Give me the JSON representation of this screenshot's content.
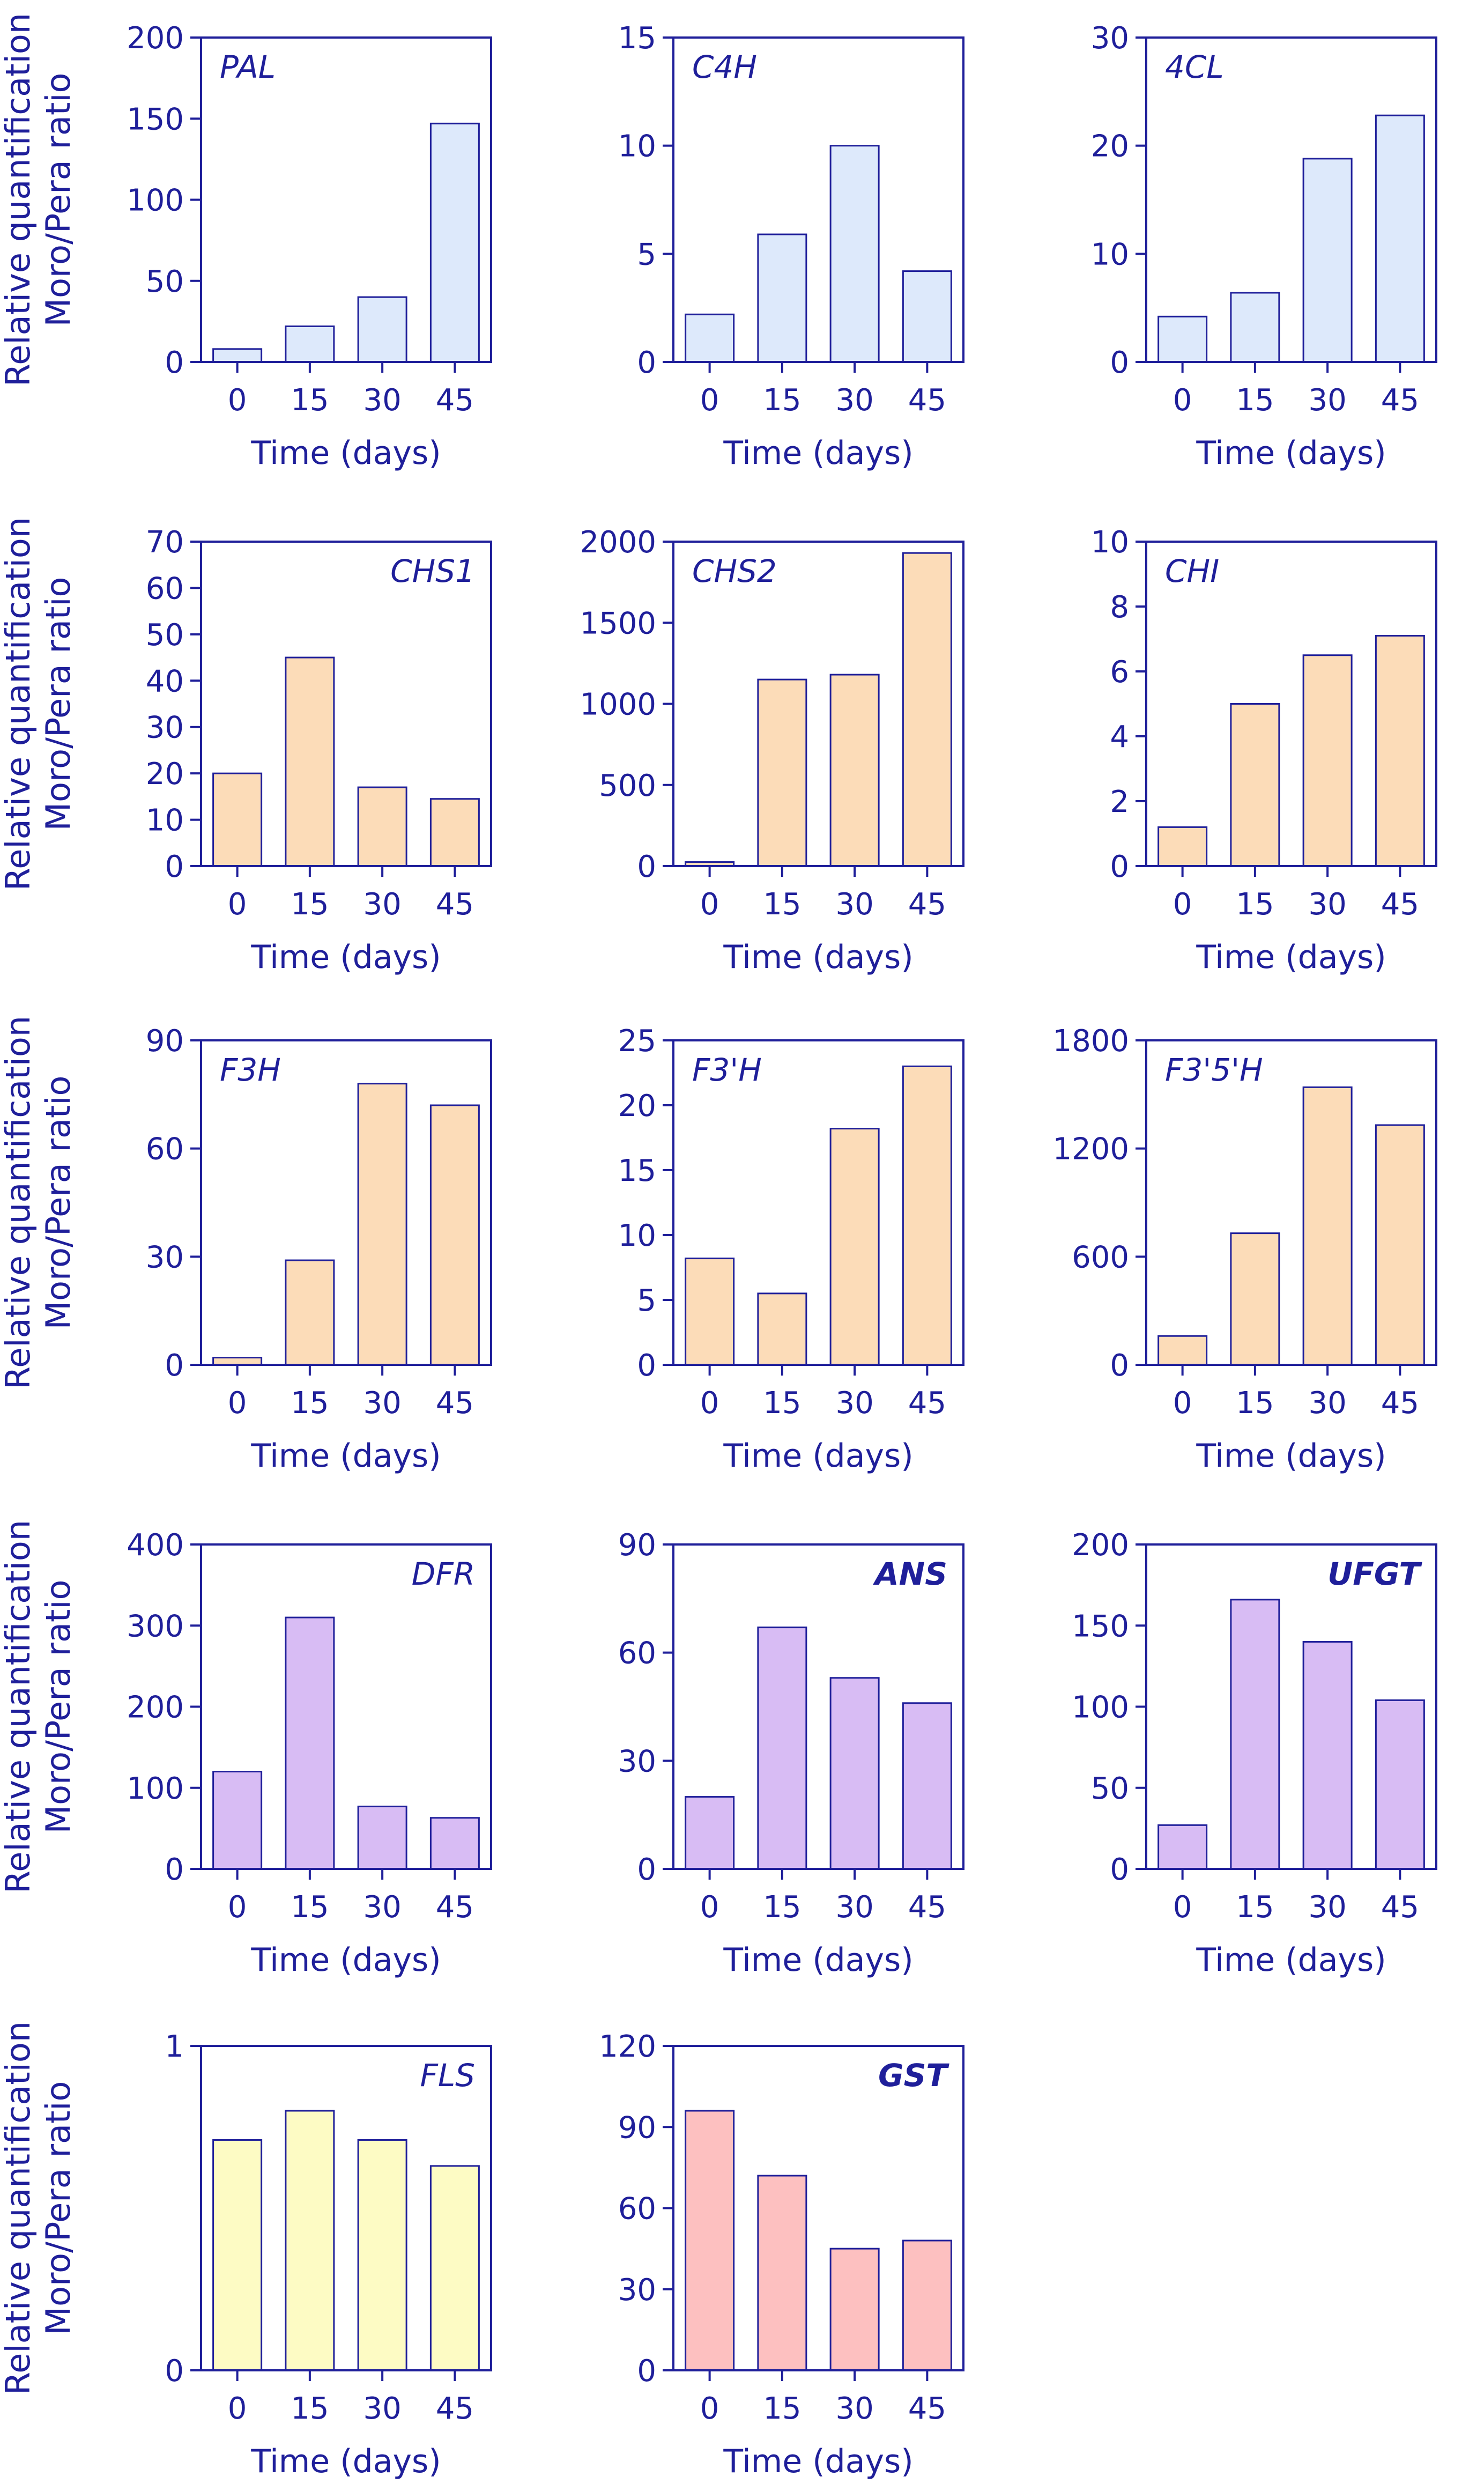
{
  "figure": {
    "ylabel_line1": "Relative quantification",
    "ylabel_line2": "Moro/Pera ratio",
    "colors": {
      "axis": "#1f1f9a",
      "blue": "#dde9fb",
      "orange": "#fcdcb8",
      "purple": "#d8bcf4",
      "yellow": "#fdfbc4",
      "pink": "#fdc0c0"
    }
  },
  "chart_data": [
    {
      "type": "bar",
      "title": "PAL",
      "title_pos": "left",
      "title_bold": false,
      "color": "blue",
      "categories": [
        "0",
        "15",
        "30",
        "45"
      ],
      "values": [
        8,
        22,
        40,
        147
      ],
      "ylim": [
        0,
        200
      ],
      "yticks": [
        "0",
        "50",
        "100",
        "150",
        "200"
      ],
      "ytick_values": [
        0,
        50,
        100,
        150,
        200
      ],
      "xlabel": "Time (days)",
      "ylabel": "Relative quantification Moro/Pera ratio"
    },
    {
      "type": "bar",
      "title": "C4H",
      "title_pos": "left",
      "title_bold": false,
      "color": "blue",
      "categories": [
        "0",
        "15",
        "30",
        "45"
      ],
      "values": [
        2.2,
        5.9,
        10,
        4.2
      ],
      "ylim": [
        0,
        15
      ],
      "yticks": [
        "0",
        "5",
        "10",
        "15"
      ],
      "ytick_values": [
        0,
        5,
        10,
        15
      ],
      "xlabel": "Time (days)",
      "ylabel": ""
    },
    {
      "type": "bar",
      "title": "4CL",
      "title_pos": "left",
      "title_bold": false,
      "color": "blue",
      "categories": [
        "0",
        "15",
        "30",
        "45"
      ],
      "values": [
        4.2,
        6.4,
        18.8,
        22.8
      ],
      "ylim": [
        0,
        30
      ],
      "yticks": [
        "0",
        "10",
        "20",
        "30"
      ],
      "ytick_values": [
        0,
        10,
        20,
        30
      ],
      "xlabel": "Time (days)",
      "ylabel": ""
    },
    {
      "type": "bar",
      "title": "CHS1",
      "title_pos": "right",
      "title_bold": false,
      "color": "orange",
      "categories": [
        "0",
        "15",
        "30",
        "45"
      ],
      "values": [
        20,
        45,
        17,
        14.5
      ],
      "ylim": [
        0,
        70
      ],
      "yticks": [
        "0",
        "10",
        "20",
        "30",
        "40",
        "50",
        "60",
        "70"
      ],
      "ytick_values": [
        0,
        10,
        20,
        30,
        40,
        50,
        60,
        70
      ],
      "xlabel": "Time (days)",
      "ylabel": "Relative quantification Moro/Pera ratio"
    },
    {
      "type": "bar",
      "title": "CHS2",
      "title_pos": "left",
      "title_bold": false,
      "color": "orange",
      "categories": [
        "0",
        "15",
        "30",
        "45"
      ],
      "values": [
        25,
        1150,
        1180,
        1930
      ],
      "ylim": [
        0,
        2000
      ],
      "yticks": [
        "0",
        "500",
        "1000",
        "1500",
        "2000"
      ],
      "ytick_values": [
        0,
        500,
        1000,
        1500,
        2000
      ],
      "xlabel": "Time (days)",
      "ylabel": ""
    },
    {
      "type": "bar",
      "title": "CHI",
      "title_pos": "left",
      "title_bold": false,
      "color": "orange",
      "categories": [
        "0",
        "15",
        "30",
        "45"
      ],
      "values": [
        1.2,
        5.0,
        6.5,
        7.1
      ],
      "ylim": [
        0,
        10
      ],
      "yticks": [
        "0",
        "2",
        "4",
        "6",
        "8",
        "10"
      ],
      "ytick_values": [
        0,
        2,
        4,
        6,
        8,
        10
      ],
      "xlabel": "Time (days)",
      "ylabel": ""
    },
    {
      "type": "bar",
      "title": "F3H",
      "title_pos": "left",
      "title_bold": false,
      "color": "orange",
      "categories": [
        "0",
        "15",
        "30",
        "45"
      ],
      "values": [
        2,
        29,
        78,
        72
      ],
      "ylim": [
        0,
        90
      ],
      "yticks": [
        "0",
        "30",
        "60",
        "90"
      ],
      "ytick_values": [
        0,
        30,
        60,
        90
      ],
      "xlabel": "Time (days)",
      "ylabel": "Relative quantification Moro/Pera ratio"
    },
    {
      "type": "bar",
      "title": "F3'H",
      "title_pos": "left",
      "title_bold": false,
      "color": "orange",
      "categories": [
        "0",
        "15",
        "30",
        "45"
      ],
      "values": [
        8.2,
        5.5,
        18.2,
        23
      ],
      "ylim": [
        0,
        25
      ],
      "yticks": [
        "0",
        "5",
        "10",
        "15",
        "20",
        "25"
      ],
      "ytick_values": [
        0,
        5,
        10,
        15,
        20,
        25
      ],
      "xlabel": "Time (days)",
      "ylabel": ""
    },
    {
      "type": "bar",
      "title": "F3'5'H",
      "title_pos": "left",
      "title_bold": false,
      "color": "orange",
      "categories": [
        "0",
        "15",
        "30",
        "45"
      ],
      "values": [
        160,
        730,
        1540,
        1330
      ],
      "ylim": [
        0,
        1800
      ],
      "yticks": [
        "0",
        "600",
        "1200",
        "1800"
      ],
      "ytick_values": [
        0,
        600,
        1200,
        1800
      ],
      "xlabel": "Time (days)",
      "ylabel": ""
    },
    {
      "type": "bar",
      "title": "DFR",
      "title_pos": "right",
      "title_bold": false,
      "color": "purple",
      "categories": [
        "0",
        "15",
        "30",
        "45"
      ],
      "values": [
        120,
        310,
        77,
        63
      ],
      "ylim": [
        0,
        400
      ],
      "yticks": [
        "0",
        "100",
        "200",
        "300",
        "400"
      ],
      "ytick_values": [
        0,
        100,
        200,
        300,
        400
      ],
      "xlabel": "Time (days)",
      "ylabel": "Relative quantification Moro/Pera ratio"
    },
    {
      "type": "bar",
      "title": "ANS",
      "title_pos": "right",
      "title_bold": true,
      "color": "purple",
      "categories": [
        "0",
        "15",
        "30",
        "45"
      ],
      "values": [
        20,
        67,
        53,
        46
      ],
      "ylim": [
        0,
        90
      ],
      "yticks": [
        "0",
        "30",
        "60",
        "90"
      ],
      "ytick_values": [
        0,
        30,
        60,
        90
      ],
      "xlabel": "Time (days)",
      "ylabel": ""
    },
    {
      "type": "bar",
      "title": "UFGT",
      "title_pos": "right",
      "title_bold": true,
      "color": "purple",
      "categories": [
        "0",
        "15",
        "30",
        "45"
      ],
      "values": [
        27,
        166,
        140,
        104
      ],
      "ylim": [
        0,
        200
      ],
      "yticks": [
        "0",
        "50",
        "100",
        "150",
        "200"
      ],
      "ytick_values": [
        0,
        50,
        100,
        150,
        200
      ],
      "xlabel": "Time (days)",
      "ylabel": ""
    },
    {
      "type": "bar",
      "title": "FLS",
      "title_pos": "right",
      "title_bold": false,
      "color": "yellow",
      "categories": [
        "0",
        "15",
        "30",
        "45"
      ],
      "values": [
        0.71,
        0.8,
        0.71,
        0.63
      ],
      "ylim": [
        0,
        1
      ],
      "yticks": [
        "0",
        "1"
      ],
      "ytick_values": [
        0,
        1
      ],
      "xlabel": "Time (days)",
      "ylabel": "Relative quantification Moro/Pera ratio"
    },
    {
      "type": "bar",
      "title": "GST",
      "title_pos": "right",
      "title_bold": true,
      "color": "pink",
      "categories": [
        "0",
        "15",
        "30",
        "45"
      ],
      "values": [
        96,
        72,
        45,
        48
      ],
      "ylim": [
        0,
        120
      ],
      "yticks": [
        "0",
        "30",
        "60",
        "90",
        "120"
      ],
      "ytick_values": [
        0,
        30,
        60,
        90,
        120
      ],
      "xlabel": "Time (days)",
      "ylabel": ""
    }
  ]
}
